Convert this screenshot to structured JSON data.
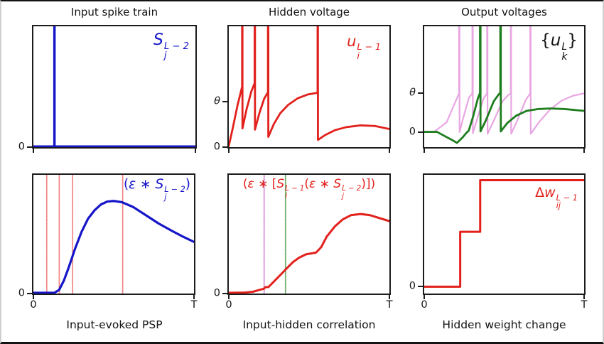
{
  "colors": {
    "blue": "#1515c9",
    "red": "#e2211c",
    "green": "#1e7d1e",
    "violet": "#e9a6e3",
    "dotted_red": "#f07f7f",
    "dotted_violet": "#d689d2",
    "dotted_green": "#62a862",
    "axis": "#1c1c1c",
    "black": "#131313"
  },
  "chart_data": [
    {
      "id": "input-spike-train",
      "type": "line",
      "title": "Input spike train",
      "xlim": [
        "0",
        "T"
      ],
      "label": {
        "color": "blue",
        "parts": [
          {
            "t": "i",
            "v": "S"
          },
          {
            "t": "ss",
            "sup": "L − 2",
            "sub": "j"
          }
        ]
      },
      "yticks": [
        {
          "label": "0",
          "pos": 0
        }
      ],
      "xticks": [
        {
          "label": "",
          "pos": 0
        },
        {
          "label": "",
          "pos": 1
        }
      ],
      "vlines": [],
      "series": [
        {
          "name": "input-spike",
          "color": "blue",
          "width": 3,
          "points": [
            [
              0,
              0.006
            ],
            [
              0.129,
              0.006
            ],
            [
              0.129,
              0.998
            ],
            [
              0.131,
              0.998
            ],
            [
              0.131,
              0.006
            ],
            [
              1,
              0.006
            ]
          ]
        }
      ]
    },
    {
      "id": "hidden-voltage",
      "type": "line",
      "title": "Hidden voltage",
      "xlim": [
        "0",
        "T"
      ],
      "label": {
        "color": "red",
        "parts": [
          {
            "t": "i",
            "v": "u"
          },
          {
            "t": "ss",
            "sup": "L − 1",
            "sub": "i"
          }
        ]
      },
      "yticks": [
        {
          "label": "θ",
          "pos": 0.374,
          "theta": true
        },
        {
          "label": "0",
          "pos": 0
        }
      ],
      "xticks": [
        {
          "label": "",
          "pos": 0
        },
        {
          "label": "",
          "pos": 1
        }
      ],
      "vlines": [],
      "series": [
        {
          "name": "hidden-membrane-voltage",
          "color": "red",
          "width": 2.8,
          "points": [
            [
              0,
              0.01
            ],
            [
              0.025,
              0.16
            ],
            [
              0.055,
              0.35
            ],
            [
              0.083,
              0.5
            ],
            [
              0.083,
              1
            ],
            [
              0.085,
              1
            ],
            [
              0.085,
              0.155
            ],
            [
              0.11,
              0.31
            ],
            [
              0.14,
              0.46
            ],
            [
              0.161,
              0.53
            ],
            [
              0.161,
              1
            ],
            [
              0.163,
              1
            ],
            [
              0.163,
              0.145
            ],
            [
              0.19,
              0.28
            ],
            [
              0.22,
              0.4
            ],
            [
              0.244,
              0.455
            ],
            [
              0.244,
              1
            ],
            [
              0.246,
              1
            ],
            [
              0.246,
              0.085
            ],
            [
              0.28,
              0.19
            ],
            [
              0.32,
              0.28
            ],
            [
              0.37,
              0.35
            ],
            [
              0.43,
              0.405
            ],
            [
              0.49,
              0.435
            ],
            [
              0.553,
              0.45
            ],
            [
              0.553,
              1
            ],
            [
              0.555,
              1
            ],
            [
              0.555,
              0.06
            ],
            [
              0.6,
              0.1
            ],
            [
              0.66,
              0.14
            ],
            [
              0.73,
              0.165
            ],
            [
              0.82,
              0.18
            ],
            [
              0.91,
              0.175
            ],
            [
              1,
              0.15
            ]
          ]
        }
      ]
    },
    {
      "id": "output-voltages",
      "type": "line",
      "title": "Output voltages",
      "xlim": [
        "0",
        "T"
      ],
      "label": {
        "color": "black",
        "parts": [
          {
            "t": "n",
            "v": "{"
          },
          {
            "t": "i",
            "v": "u"
          },
          {
            "t": "ss",
            "sup": "L",
            "sub": "k"
          },
          {
            "t": "n",
            "v": "}"
          }
        ]
      },
      "yticks": [
        {
          "label": "θ",
          "pos": 0.448,
          "theta": true
        },
        {
          "label": "0",
          "pos": 0.126
        }
      ],
      "xticks": [
        {
          "label": "",
          "pos": 0
        },
        {
          "label": "",
          "pos": 1
        }
      ],
      "vlines": [],
      "series": [
        {
          "name": "output-voltage-k2",
          "color": "violet",
          "width": 2.2,
          "points": [
            [
              0,
              0.126
            ],
            [
              0.06,
              0.126
            ],
            [
              0.1,
              0.165
            ],
            [
              0.14,
              0.205
            ],
            [
              0.18,
              0.33
            ],
            [
              0.218,
              0.445
            ],
            [
              0.218,
              1
            ],
            [
              0.221,
              1
            ],
            [
              0.221,
              0.125
            ],
            [
              0.25,
              0.27
            ],
            [
              0.28,
              0.41
            ],
            [
              0.301,
              0.445
            ],
            [
              0.301,
              1
            ],
            [
              0.304,
              1
            ],
            [
              0.304,
              0.115
            ],
            [
              0.335,
              0.25
            ],
            [
              0.37,
              0.4
            ],
            [
              0.393,
              0.445
            ],
            [
              0.393,
              1
            ],
            [
              0.396,
              1
            ],
            [
              0.396,
              0.11
            ],
            [
              0.435,
              0.22
            ],
            [
              0.49,
              0.38
            ],
            [
              0.525,
              0.43
            ],
            [
              0.541,
              0.445
            ],
            [
              0.541,
              1
            ],
            [
              0.544,
              1
            ],
            [
              0.544,
              0.11
            ],
            [
              0.585,
              0.23
            ],
            [
              0.635,
              0.39
            ],
            [
              0.663,
              0.445
            ],
            [
              0.663,
              1
            ],
            [
              0.666,
              1
            ],
            [
              0.666,
              0.11
            ],
            [
              0.72,
              0.21
            ],
            [
              0.79,
              0.315
            ],
            [
              0.86,
              0.385
            ],
            [
              0.93,
              0.425
            ],
            [
              1,
              0.445
            ]
          ]
        },
        {
          "name": "output-voltage-k1",
          "color": "green",
          "width": 2.8,
          "points": [
            [
              0,
              0.126
            ],
            [
              0.08,
              0.126
            ],
            [
              0.13,
              0.09
            ],
            [
              0.18,
              0.055
            ],
            [
              0.205,
              0.035
            ],
            [
              0.24,
              0.08
            ],
            [
              0.265,
              0.12
            ],
            [
              0.278,
              0.135
            ],
            [
              0.305,
              0.25
            ],
            [
              0.335,
              0.4
            ],
            [
              0.349,
              0.45
            ],
            [
              0.349,
              1
            ],
            [
              0.352,
              1
            ],
            [
              0.352,
              0.13
            ],
            [
              0.385,
              0.22
            ],
            [
              0.435,
              0.38
            ],
            [
              0.465,
              0.435
            ],
            [
              0.476,
              0.45
            ],
            [
              0.476,
              1
            ],
            [
              0.479,
              1
            ],
            [
              0.479,
              0.13
            ],
            [
              0.52,
              0.2
            ],
            [
              0.575,
              0.26
            ],
            [
              0.64,
              0.3
            ],
            [
              0.71,
              0.315
            ],
            [
              0.79,
              0.32
            ],
            [
              0.88,
              0.315
            ],
            [
              1,
              0.3
            ]
          ]
        }
      ]
    },
    {
      "id": "input-evoked-psp",
      "type": "line",
      "xlabel": "Input-evoked PSP",
      "xlim": [
        "0",
        "T"
      ],
      "label": {
        "color": "blue",
        "parts": [
          {
            "t": "n",
            "v": "("
          },
          {
            "t": "i",
            "v": "ε"
          },
          {
            "t": "n",
            "v": " ∗ "
          },
          {
            "t": "i",
            "v": "S"
          },
          {
            "t": "ss",
            "sup": "L − 2",
            "sub": "j"
          },
          {
            "t": "n",
            "v": ")"
          }
        ]
      },
      "yticks": [
        {
          "label": "0",
          "pos": 0
        }
      ],
      "xticks": [
        {
          "label": "0",
          "pos": 0
        },
        {
          "label": "T",
          "pos": 1
        }
      ],
      "vlines": [
        {
          "x": 0.083,
          "color": "dotted_red"
        },
        {
          "x": 0.161,
          "color": "dotted_red"
        },
        {
          "x": 0.244,
          "color": "dotted_red"
        },
        {
          "x": 0.556,
          "color": "dotted_red"
        }
      ],
      "series": [
        {
          "name": "psp-kernel",
          "color": "blue",
          "width": 3.2,
          "points": [
            [
              0,
              0.006
            ],
            [
              0.13,
              0.006
            ],
            [
              0.16,
              0.03
            ],
            [
              0.19,
              0.11
            ],
            [
              0.22,
              0.22
            ],
            [
              0.26,
              0.38
            ],
            [
              0.3,
              0.52
            ],
            [
              0.34,
              0.63
            ],
            [
              0.38,
              0.7
            ],
            [
              0.42,
              0.75
            ],
            [
              0.46,
              0.775
            ],
            [
              0.5,
              0.78
            ],
            [
              0.55,
              0.77
            ],
            [
              0.62,
              0.73
            ],
            [
              0.7,
              0.66
            ],
            [
              0.78,
              0.59
            ],
            [
              0.86,
              0.53
            ],
            [
              0.93,
              0.48
            ],
            [
              1,
              0.435
            ]
          ]
        }
      ]
    },
    {
      "id": "input-hidden-correlation",
      "type": "line",
      "xlabel": "Input-hidden correlation",
      "xlim": [
        "0",
        "T"
      ],
      "label": {
        "color": "red",
        "parts": [
          {
            "t": "n",
            "v": "("
          },
          {
            "t": "i",
            "v": "ε"
          },
          {
            "t": "n",
            "v": " ∗ "
          },
          {
            "t": "n",
            "v": "["
          },
          {
            "t": "i",
            "v": "S"
          },
          {
            "t": "ss",
            "sup": "L − 1",
            "sub": "i"
          },
          {
            "t": "n",
            "v": "("
          },
          {
            "t": "i",
            "v": "ε"
          },
          {
            "t": "n",
            "v": " ∗ "
          },
          {
            "t": "i",
            "v": "S"
          },
          {
            "t": "ss",
            "sup": "L − 2",
            "sub": "j"
          },
          {
            "t": "n",
            "v": ")"
          },
          {
            "t": "n",
            "v": "]"
          },
          {
            "t": "n",
            "v": ")"
          }
        ]
      },
      "yticks": [
        {
          "label": "0",
          "pos": 0
        }
      ],
      "xticks": [
        {
          "label": "0",
          "pos": 0
        },
        {
          "label": "T",
          "pos": 1
        }
      ],
      "vlines": [
        {
          "x": 0.22,
          "color": "dotted_violet"
        },
        {
          "x": 0.353,
          "color": "dotted_green"
        }
      ],
      "series": [
        {
          "name": "correlation-trace",
          "color": "red",
          "width": 3,
          "points": [
            [
              0,
              0.006
            ],
            [
              0.1,
              0.008
            ],
            [
              0.15,
              0.015
            ],
            [
              0.19,
              0.03
            ],
            [
              0.217,
              0.04
            ],
            [
              0.23,
              0.055
            ],
            [
              0.247,
              0.055
            ],
            [
              0.28,
              0.1
            ],
            [
              0.32,
              0.155
            ],
            [
              0.352,
              0.2
            ],
            [
              0.4,
              0.265
            ],
            [
              0.435,
              0.3
            ],
            [
              0.48,
              0.33
            ],
            [
              0.543,
              0.345
            ],
            [
              0.575,
              0.39
            ],
            [
              0.61,
              0.48
            ],
            [
              0.66,
              0.565
            ],
            [
              0.71,
              0.625
            ],
            [
              0.76,
              0.66
            ],
            [
              0.82,
              0.67
            ],
            [
              0.88,
              0.66
            ],
            [
              1,
              0.61
            ]
          ]
        }
      ]
    },
    {
      "id": "hidden-weight-change",
      "type": "line",
      "xlabel": "Hidden weight change",
      "xlim": [
        "0",
        "T"
      ],
      "label": {
        "color": "red",
        "parts": [
          {
            "t": "n",
            "v": "Δ"
          },
          {
            "t": "i",
            "v": "w"
          },
          {
            "t": "ss",
            "sup": "L − 1",
            "sub": "ij"
          }
        ]
      },
      "yticks": [
        {
          "label": "0",
          "pos": 0.058
        }
      ],
      "xticks": [
        {
          "label": "0",
          "pos": 0
        },
        {
          "label": "T",
          "pos": 1
        }
      ],
      "vlines": [],
      "series": [
        {
          "name": "weight-change-step",
          "color": "red",
          "width": 3,
          "points": [
            [
              0,
              0.058
            ],
            [
              0.225,
              0.058
            ],
            [
              0.225,
              0.52
            ],
            [
              0.35,
              0.52
            ],
            [
              0.35,
              0.955
            ],
            [
              1,
              0.955
            ]
          ]
        }
      ]
    }
  ]
}
